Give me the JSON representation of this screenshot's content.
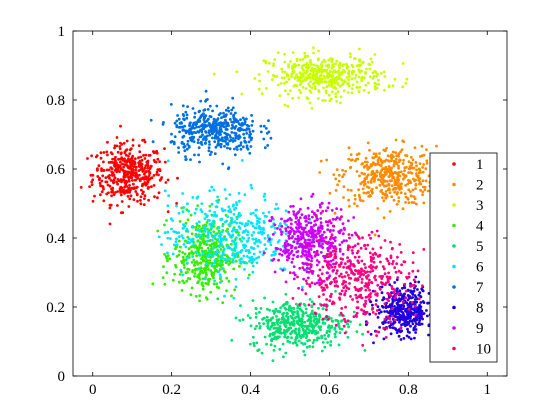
{
  "chart_data": {
    "type": "scatter",
    "title": "",
    "xlabel": "",
    "ylabel": "",
    "xlim": [
      -0.05,
      1.05
    ],
    "ylim": [
      0,
      1
    ],
    "xticks": [
      0,
      0.2,
      0.4,
      0.6,
      0.8,
      1
    ],
    "xtick_labels": [
      "0",
      "0.2",
      "0.4",
      "0.6",
      "0.8",
      "1"
    ],
    "yticks": [
      0,
      0.2,
      0.4,
      0.6,
      0.8,
      1
    ],
    "ytick_labels": [
      "0",
      "0.2",
      "0.4",
      "0.6",
      "0.8",
      "1"
    ],
    "grid": false,
    "legend_position": "right",
    "series": [
      {
        "name": "1",
        "color": "#ff0000",
        "cx": 0.09,
        "cy": 0.585,
        "sx": 0.09,
        "sy": 0.085
      },
      {
        "name": "2",
        "color": "#ff8c00",
        "cx": 0.75,
        "cy": 0.58,
        "sx": 0.12,
        "sy": 0.085
      },
      {
        "name": "3",
        "color": "#c8ff00",
        "cx": 0.59,
        "cy": 0.87,
        "sx": 0.15,
        "sy": 0.06
      },
      {
        "name": "4",
        "color": "#33ee00",
        "cx": 0.285,
        "cy": 0.35,
        "sx": 0.08,
        "sy": 0.11
      },
      {
        "name": "5",
        "color": "#00e070",
        "cx": 0.52,
        "cy": 0.15,
        "sx": 0.12,
        "sy": 0.07
      },
      {
        "name": "6",
        "color": "#00e5ff",
        "cx": 0.35,
        "cy": 0.41,
        "sx": 0.16,
        "sy": 0.12
      },
      {
        "name": "7",
        "color": "#0070e0",
        "cx": 0.31,
        "cy": 0.71,
        "sx": 0.11,
        "sy": 0.07
      },
      {
        "name": "8",
        "color": "#2200dd",
        "cx": 0.79,
        "cy": 0.19,
        "sx": 0.07,
        "sy": 0.07
      },
      {
        "name": "9",
        "color": "#cc00ff",
        "cx": 0.55,
        "cy": 0.39,
        "sx": 0.09,
        "sy": 0.1
      },
      {
        "name": "10",
        "color": "#ff0080",
        "cx": 0.67,
        "cy": 0.28,
        "sx": 0.14,
        "sy": 0.13
      }
    ]
  }
}
